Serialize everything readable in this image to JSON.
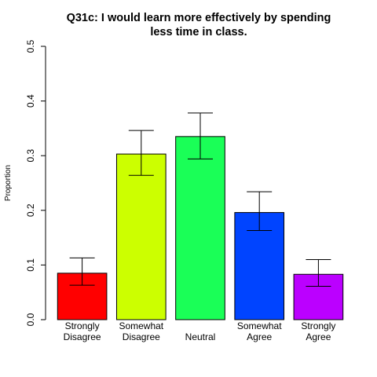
{
  "chart_data": {
    "type": "bar",
    "title_lines": [
      "Q31c: I would learn more effectively by spending",
      "less time in class."
    ],
    "ylabel": "Proportion",
    "ylim": [
      0,
      0.5
    ],
    "yticks": [
      "0.0",
      "0.1",
      "0.2",
      "0.3",
      "0.4",
      "0.5"
    ],
    "categories": [
      [
        "Strongly",
        "Disagree"
      ],
      [
        "Somewhat",
        "Disagree"
      ],
      [
        "Neutral"
      ],
      [
        "Somewhat",
        "Agree"
      ],
      [
        "Strongly",
        "Agree"
      ]
    ],
    "values": [
      0.085,
      0.303,
      0.335,
      0.196,
      0.083
    ],
    "error_low": [
      0.063,
      0.264,
      0.294,
      0.163,
      0.061
    ],
    "error_high": [
      0.113,
      0.346,
      0.378,
      0.234,
      0.11
    ],
    "colors": [
      "#ff0000",
      "#ccff00",
      "#1aff57",
      "#0044ff",
      "#bb00ff"
    ],
    "grid": false,
    "legend": "none"
  }
}
